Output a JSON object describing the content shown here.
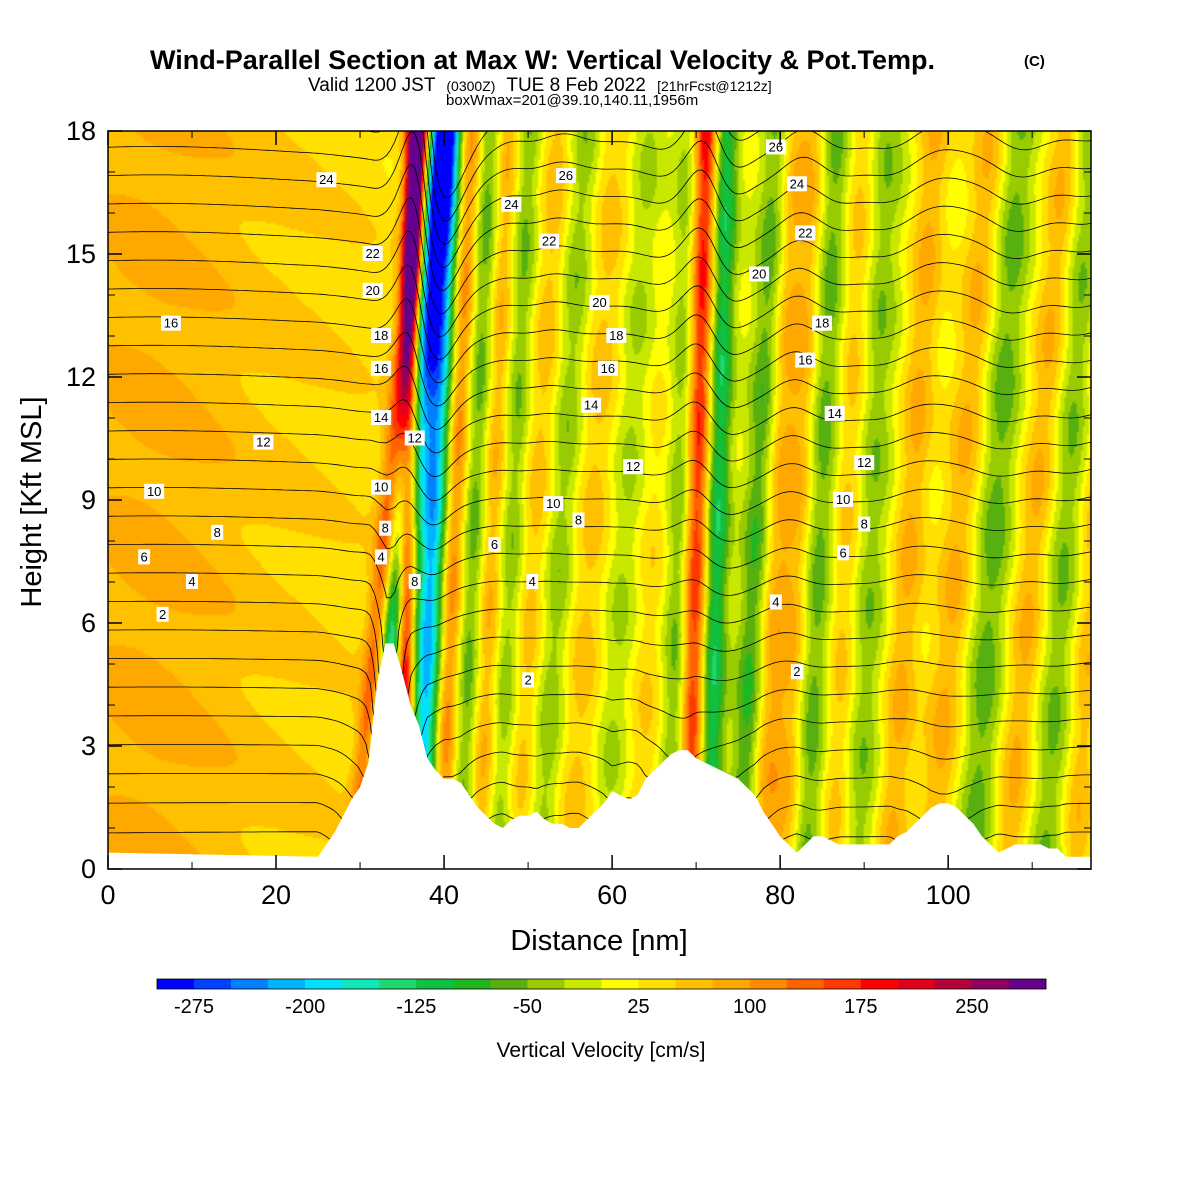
{
  "header": {
    "title": "Wind-Parallel Section at Max W: Vertical Velocity & Pot.Temp.",
    "title_mark": "(C)",
    "valid_prefix": "Valid 1200 JST",
    "valid_utc": "(0300Z)",
    "valid_date": "TUE 8 Feb 2022",
    "forecast": "[21hrFcst@1212z]",
    "box_info": "boxWmax=201@39.10,140.11,1956m"
  },
  "chart_data": {
    "type": "heatmap",
    "xlabel": "Distance [nm]",
    "ylabel": "Height [Kft MSL]",
    "xlim": [
      0,
      117
    ],
    "ylim": [
      0,
      18
    ],
    "x_ticks": [
      "0",
      "20",
      "40",
      "60",
      "80",
      "100"
    ],
    "y_ticks": [
      "0",
      "3",
      "6",
      "9",
      "12",
      "15",
      "18"
    ],
    "colorbar": {
      "title": "Vertical Velocity [cm/s]",
      "range": [
        -300,
        300
      ],
      "tick_labels": [
        "-275",
        "-200",
        "-125",
        "-50",
        "25",
        "100",
        "175",
        "250"
      ],
      "tick_values": [
        -275,
        -200,
        -125,
        -50,
        25,
        100,
        175,
        250
      ],
      "colors": [
        "#0000ff",
        "#0040ff",
        "#0080ff",
        "#00b4ff",
        "#00e0ff",
        "#10e8b8",
        "#20d870",
        "#10c040",
        "#20b820",
        "#58b010",
        "#98cc00",
        "#c8e800",
        "#ffff00",
        "#ffe000",
        "#ffc000",
        "#ffa800",
        "#ff8c00",
        "#ff6400",
        "#ff3800",
        "#ff0000",
        "#e0001c",
        "#b40038",
        "#8c0060",
        "#64008c"
      ]
    },
    "terrain_nm_kft": [
      [
        0,
        0.4
      ],
      [
        25,
        0.3
      ],
      [
        26,
        0.6
      ],
      [
        27,
        0.9
      ],
      [
        28,
        1.3
      ],
      [
        29,
        1.7
      ],
      [
        30,
        2.0
      ],
      [
        31,
        2.6
      ],
      [
        32,
        4.5
      ],
      [
        33,
        5.5
      ],
      [
        34,
        5.5
      ],
      [
        35,
        4.8
      ],
      [
        36,
        4.0
      ],
      [
        37,
        3.5
      ],
      [
        38,
        2.7
      ],
      [
        39,
        2.4
      ],
      [
        40,
        2.2
      ],
      [
        41,
        2.2
      ],
      [
        42,
        2.1
      ],
      [
        43,
        1.8
      ],
      [
        44,
        1.5
      ],
      [
        45,
        1.3
      ],
      [
        46,
        1.1
      ],
      [
        47,
        1.0
      ],
      [
        48,
        1.2
      ],
      [
        49,
        1.3
      ],
      [
        50,
        1.3
      ],
      [
        51,
        1.4
      ],
      [
        52,
        1.2
      ],
      [
        53,
        1.1
      ],
      [
        54,
        1.1
      ],
      [
        55,
        1.0
      ],
      [
        56,
        1.0
      ],
      [
        57,
        1.2
      ],
      [
        58,
        1.4
      ],
      [
        59,
        1.6
      ],
      [
        60,
        1.9
      ],
      [
        61,
        1.8
      ],
      [
        62,
        1.7
      ],
      [
        63,
        1.8
      ],
      [
        64,
        2.2
      ],
      [
        65,
        2.4
      ],
      [
        66,
        2.6
      ],
      [
        67,
        2.8
      ],
      [
        68,
        2.9
      ],
      [
        69,
        2.9
      ],
      [
        70,
        2.7
      ],
      [
        71,
        2.6
      ],
      [
        72,
        2.5
      ],
      [
        73,
        2.4
      ],
      [
        74,
        2.3
      ],
      [
        75,
        2.2
      ],
      [
        76,
        2.0
      ],
      [
        77,
        1.8
      ],
      [
        78,
        1.4
      ],
      [
        79,
        1.1
      ],
      [
        80,
        0.8
      ],
      [
        81,
        0.6
      ],
      [
        82,
        0.4
      ],
      [
        83,
        0.6
      ],
      [
        84,
        0.8
      ],
      [
        85,
        0.8
      ],
      [
        86,
        0.7
      ],
      [
        87,
        0.6
      ],
      [
        88,
        0.6
      ],
      [
        89,
        0.6
      ],
      [
        90,
        0.6
      ],
      [
        91,
        0.6
      ],
      [
        92,
        0.6
      ],
      [
        93,
        0.6
      ],
      [
        94,
        0.8
      ],
      [
        95,
        0.9
      ],
      [
        96,
        1.1
      ],
      [
        97,
        1.3
      ],
      [
        98,
        1.5
      ],
      [
        99,
        1.6
      ],
      [
        100,
        1.6
      ],
      [
        101,
        1.5
      ],
      [
        102,
        1.3
      ],
      [
        103,
        1.1
      ],
      [
        104,
        0.8
      ],
      [
        105,
        0.6
      ],
      [
        106,
        0.4
      ],
      [
        107,
        0.5
      ],
      [
        108,
        0.6
      ],
      [
        109,
        0.6
      ],
      [
        110,
        0.6
      ],
      [
        111,
        0.6
      ],
      [
        112,
        0.5
      ],
      [
        113,
        0.5
      ],
      [
        114,
        0.3
      ],
      [
        117,
        0.3
      ]
    ],
    "velocity_bands": [
      {
        "x0": 2,
        "slope": 0,
        "width": 8,
        "amp": 40
      },
      {
        "x0": 16,
        "slope": 0.1,
        "width": 16,
        "amp": 45
      },
      {
        "x0": 29.5,
        "slope": 0.45,
        "width": 0.9,
        "amp": 150
      },
      {
        "x0": 31.5,
        "slope": 0.45,
        "width": 1.3,
        "amp": -230
      },
      {
        "x0": 34.8,
        "slope": 0.1,
        "width": 0.8,
        "amp": 290
      },
      {
        "x0": 37,
        "slope": 0.2,
        "width": 1.3,
        "amp": -240
      },
      {
        "x0": 39.5,
        "slope": 0.2,
        "width": 1.0,
        "amp": 120
      },
      {
        "x0": 42,
        "slope": 0.2,
        "width": 1.2,
        "amp": -90
      },
      {
        "x0": 44,
        "slope": 0.2,
        "width": 1.1,
        "amp": 80
      },
      {
        "x0": 46.5,
        "slope": 0.2,
        "width": 1.2,
        "amp": -70
      },
      {
        "x0": 48.5,
        "slope": 0.3,
        "width": 1.5,
        "amp": 60
      },
      {
        "x0": 51.5,
        "slope": 0.3,
        "width": 1.6,
        "amp": -80
      },
      {
        "x0": 55,
        "slope": 0.3,
        "width": 2.5,
        "amp": 60
      },
      {
        "x0": 59,
        "slope": 0.3,
        "width": 1.8,
        "amp": -60
      },
      {
        "x0": 63,
        "slope": 0.3,
        "width": 2.2,
        "amp": 50
      },
      {
        "x0": 67.5,
        "slope": 0.1,
        "width": 1.6,
        "amp": -100
      },
      {
        "x0": 69,
        "slope": 0.12,
        "width": 1.0,
        "amp": 210
      },
      {
        "x0": 71.5,
        "slope": 0.12,
        "width": 1.0,
        "amp": -130
      },
      {
        "x0": 75.5,
        "slope": 0.25,
        "width": 1.3,
        "amp": -110
      },
      {
        "x0": 77.5,
        "slope": 0.2,
        "width": 1.3,
        "amp": 90
      },
      {
        "x0": 80.5,
        "slope": 0.2,
        "width": 1.4,
        "amp": 70
      },
      {
        "x0": 83,
        "slope": 0.2,
        "width": 1.3,
        "amp": -80
      },
      {
        "x0": 86.5,
        "slope": 0.2,
        "width": 1.4,
        "amp": 60
      },
      {
        "x0": 89,
        "slope": 0.2,
        "width": 1.6,
        "amp": -60
      },
      {
        "x0": 93,
        "slope": 0.3,
        "width": 1.4,
        "amp": 70
      },
      {
        "x0": 98,
        "slope": 0.4,
        "width": 1.6,
        "amp": 70
      },
      {
        "x0": 103,
        "slope": 0.3,
        "width": 1.6,
        "amp": -70
      },
      {
        "x0": 107,
        "slope": 0.4,
        "width": 1.5,
        "amp": 70
      },
      {
        "x0": 111.5,
        "slope": 0.3,
        "width": 1.5,
        "amp": -60
      },
      {
        "x0": 115,
        "slope": 0.3,
        "width": 1.3,
        "amp": 60
      }
    ],
    "theta_contour_levels": [
      -1,
      0,
      1,
      2,
      3,
      4,
      5,
      6,
      7,
      8,
      9,
      10,
      11,
      12,
      13,
      14,
      15,
      16,
      17,
      18,
      19,
      20,
      21,
      22,
      23,
      24,
      25,
      26,
      27
    ],
    "theta_labels": [
      {
        "text": "2",
        "x": 6.5,
        "y": 6.2
      },
      {
        "text": "4",
        "x": 10,
        "y": 7.0
      },
      {
        "text": "6",
        "x": 4.3,
        "y": 7.6
      },
      {
        "text": "8",
        "x": 13,
        "y": 8.2
      },
      {
        "text": "10",
        "x": 5.5,
        "y": 9.2
      },
      {
        "text": "12",
        "x": 18.5,
        "y": 10.4
      },
      {
        "text": "16",
        "x": 7.5,
        "y": 13.3
      },
      {
        "text": "24",
        "x": 26,
        "y": 16.8
      },
      {
        "text": "22",
        "x": 31.5,
        "y": 15.0
      },
      {
        "text": "20",
        "x": 31.5,
        "y": 14.1
      },
      {
        "text": "18",
        "x": 32.5,
        "y": 13.0
      },
      {
        "text": "16",
        "x": 32.5,
        "y": 12.2
      },
      {
        "text": "14",
        "x": 32.5,
        "y": 11.0
      },
      {
        "text": "12",
        "x": 36.5,
        "y": 10.5
      },
      {
        "text": "10",
        "x": 32.5,
        "y": 9.3
      },
      {
        "text": "8",
        "x": 33,
        "y": 8.3
      },
      {
        "text": "4",
        "x": 32.5,
        "y": 7.6
      },
      {
        "text": "8",
        "x": 36.5,
        "y": 7.0
      },
      {
        "text": "2",
        "x": 50,
        "y": 4.6
      },
      {
        "text": "4",
        "x": 50.5,
        "y": 7.0
      },
      {
        "text": "6",
        "x": 46,
        "y": 7.9
      },
      {
        "text": "8",
        "x": 56,
        "y": 8.5
      },
      {
        "text": "10",
        "x": 53,
        "y": 8.9
      },
      {
        "text": "12",
        "x": 62.5,
        "y": 9.8
      },
      {
        "text": "14",
        "x": 57.5,
        "y": 11.3
      },
      {
        "text": "16",
        "x": 59.5,
        "y": 12.2
      },
      {
        "text": "18",
        "x": 60.5,
        "y": 13.0
      },
      {
        "text": "20",
        "x": 58.5,
        "y": 13.8
      },
      {
        "text": "22",
        "x": 52.5,
        "y": 15.3
      },
      {
        "text": "24",
        "x": 48,
        "y": 16.2
      },
      {
        "text": "26",
        "x": 54.5,
        "y": 16.9
      },
      {
        "text": "26",
        "x": 79.5,
        "y": 17.6
      },
      {
        "text": "24",
        "x": 82,
        "y": 16.7
      },
      {
        "text": "22",
        "x": 83,
        "y": 15.5
      },
      {
        "text": "20",
        "x": 77.5,
        "y": 14.5
      },
      {
        "text": "18",
        "x": 85,
        "y": 13.3
      },
      {
        "text": "16",
        "x": 83,
        "y": 12.4
      },
      {
        "text": "14",
        "x": 86.5,
        "y": 11.1
      },
      {
        "text": "12",
        "x": 90,
        "y": 9.9
      },
      {
        "text": "10",
        "x": 87.5,
        "y": 9.0
      },
      {
        "text": "8",
        "x": 90,
        "y": 8.4
      },
      {
        "text": "6",
        "x": 87.5,
        "y": 7.7
      },
      {
        "text": "4",
        "x": 79.5,
        "y": 6.5
      },
      {
        "text": "2",
        "x": 82,
        "y": 4.8
      }
    ]
  }
}
